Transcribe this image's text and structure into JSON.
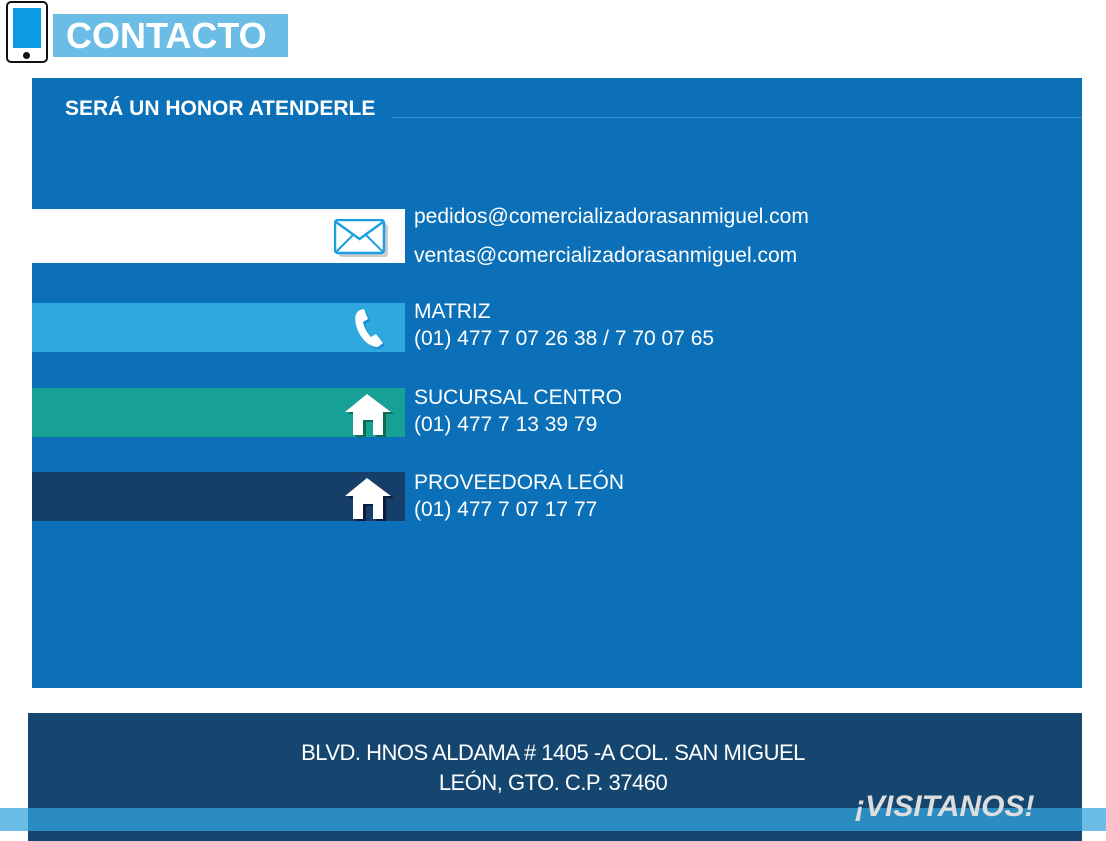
{
  "header": {
    "title": "CONTACTO",
    "icon": "smartphone-icon"
  },
  "panel": {
    "subtitle": "SERÁ UN HONOR ATENDERLE"
  },
  "contacts": [
    {
      "icon": "envelope-icon",
      "color": "#ffffff",
      "lines": [
        "pedidos@comercializadorasanmiguel.com",
        "ventas@comercializadorasanmiguel.com"
      ]
    },
    {
      "icon": "phone-icon",
      "color": "#2fa8e0",
      "lines": [
        "MATRIZ",
        "(01) 477 7 07 26 38 / 7 70 07 65"
      ]
    },
    {
      "icon": "house-icon",
      "color": "#16a096",
      "lines": [
        "SUCURSAL CENTRO",
        "(01) 477 7 13 39 79"
      ]
    },
    {
      "icon": "house-icon",
      "color": "#153f68",
      "lines": [
        "PROVEEDORA LEÓN",
        "(01) 477 7 07 17 77"
      ]
    }
  ],
  "footer": {
    "address_line1": "BLVD. HNOS ALDAMA # 1405 -A  COL. SAN MIGUEL",
    "address_line2": "LEÓN, GTO. C.P. 37460",
    "cta": "¡VISITANOS!"
  }
}
